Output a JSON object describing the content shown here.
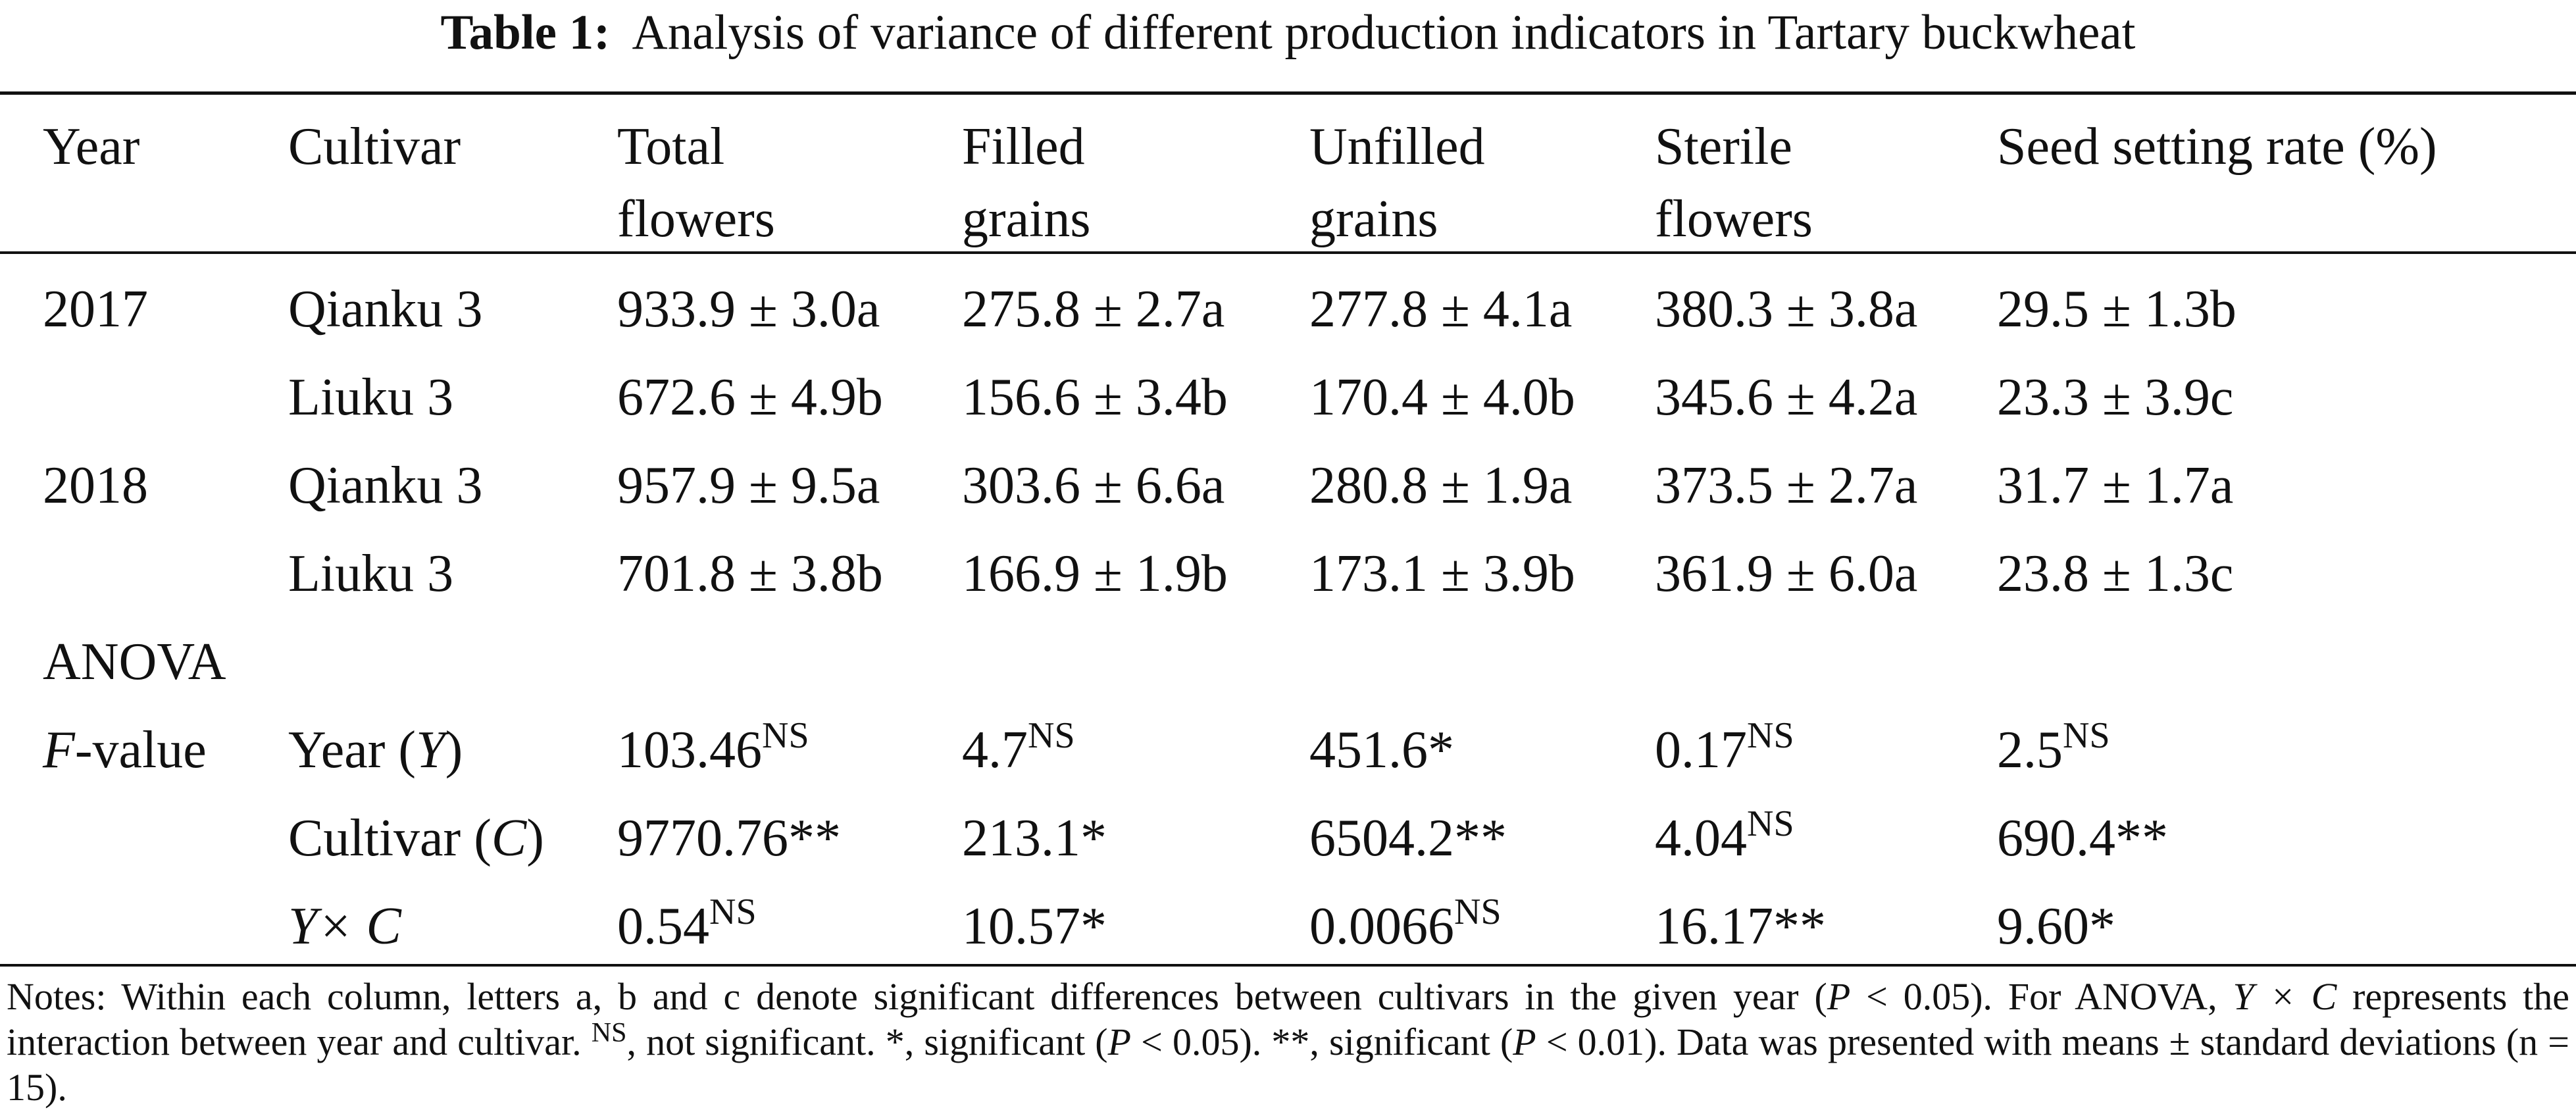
{
  "caption": {
    "label": "Table 1:",
    "text": "Analysis of variance of different production indicators in Tartary buckwheat"
  },
  "headers": [
    {
      "l1": "Year",
      "l2": ""
    },
    {
      "l1": "Cultivar",
      "l2": ""
    },
    {
      "l1": "Total",
      "l2": "flowers"
    },
    {
      "l1": "Filled",
      "l2": "grains"
    },
    {
      "l1": "Unfilled",
      "l2": "grains"
    },
    {
      "l1": "Sterile",
      "l2": "flowers"
    },
    {
      "l1": "Seed setting rate (%)",
      "l2": ""
    }
  ],
  "rows": [
    {
      "year": "2017",
      "cultivar": "Qianku 3",
      "values": [
        "933.9 ± 3.0a",
        "275.8 ± 2.7a",
        "277.8 ± 4.1a",
        "380.3 ± 3.8a",
        "29.5 ± 1.3b"
      ]
    },
    {
      "year": "",
      "cultivar": "Liuku 3",
      "values": [
        "672.6 ± 4.9b",
        "156.6 ± 3.4b",
        "170.4 ± 4.0b",
        "345.6 ± 4.2a",
        "23.3 ± 3.9c"
      ]
    },
    {
      "year": "2018",
      "cultivar": "Qianku 3",
      "values": [
        "957.9 ± 9.5a",
        "303.6 ± 6.6a",
        "280.8 ± 1.9a",
        "373.5 ± 2.7a",
        "31.7 ± 1.7a"
      ]
    },
    {
      "year": "",
      "cultivar": "Liuku 3",
      "values": [
        "701.8 ± 3.8b",
        "166.9 ± 1.9b",
        "173.1 ± 3.9b",
        "361.9 ± 6.0a",
        "23.8 ± 1.3c"
      ]
    }
  ],
  "anova": {
    "label": "ANOVA",
    "fvalue_italic": "F",
    "fvalue_rest": "-value",
    "rows": [
      {
        "factor_prefix": "Year (",
        "factor_italic": "Y",
        "factor_suffix": ")",
        "values": [
          {
            "v": "103.46",
            "s": "NS"
          },
          {
            "v": "4.7",
            "s": "NS"
          },
          {
            "v": "451.6*",
            "s": ""
          },
          {
            "v": "0.17",
            "s": "NS"
          },
          {
            "v": "2.5",
            "s": "NS"
          }
        ]
      },
      {
        "factor_prefix": "Cultivar (",
        "factor_italic": "C",
        "factor_suffix": ")",
        "values": [
          {
            "v": "9770.76**",
            "s": ""
          },
          {
            "v": "213.1*",
            "s": ""
          },
          {
            "v": "6504.2**",
            "s": ""
          },
          {
            "v": "4.04",
            "s": "NS"
          },
          {
            "v": "690.4**",
            "s": ""
          }
        ]
      },
      {
        "factor_prefix": "",
        "factor_italic": "Y× C",
        "factor_suffix": "",
        "values": [
          {
            "v": "0.54",
            "s": "NS"
          },
          {
            "v": "10.57*",
            "s": ""
          },
          {
            "v": "0.0066",
            "s": "NS"
          },
          {
            "v": "16.17**",
            "s": ""
          },
          {
            "v": "9.60*",
            "s": ""
          }
        ]
      }
    ]
  },
  "notes": {
    "n1": "Notes: Within each column, letters a, b and c denote significant differences between cultivars in the given year (",
    "p": "P",
    "n2": " < 0.05). For ANOVA, ",
    "yxc": "Y × C",
    "n3": " represents the interaction between year and cultivar. ",
    "ns": "NS",
    "n4": ", not significant. *, significant (",
    "n5": " < 0.05). **, significant (",
    "n6": " < 0.01). Data was presented with means ± standard deviations (n = 15)."
  }
}
